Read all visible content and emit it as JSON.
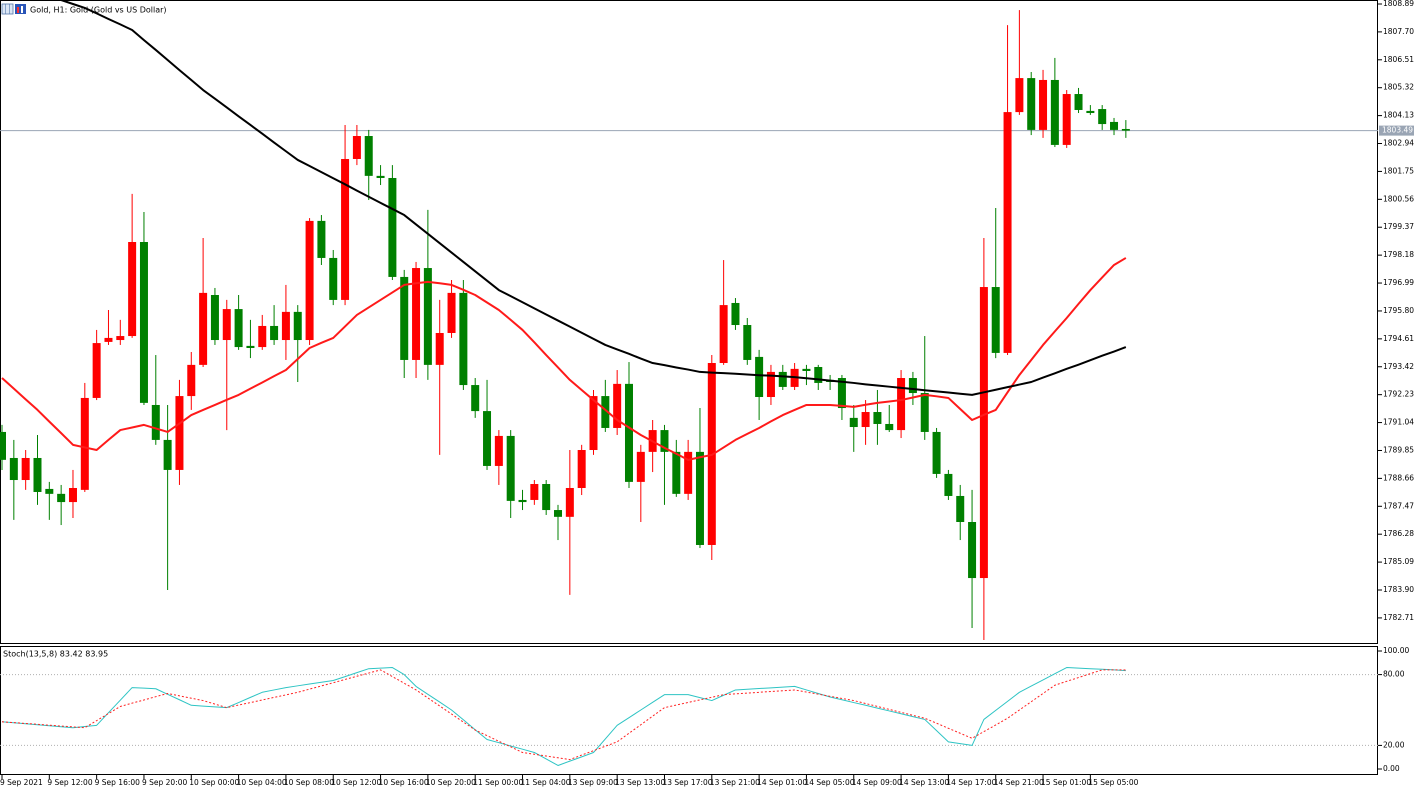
{
  "chart_data": [
    {
      "type": "candlestick",
      "title": "Gold, H1:  Gold (Gold vs US Dollar)",
      "categories": [
        "9 Sep 2021",
        null,
        null,
        null,
        "9 Sep 12:00",
        null,
        null,
        null,
        "9 Sep 16:00",
        null,
        null,
        null,
        "9 Sep 20:00",
        null,
        null,
        null,
        "10 Sep 00:00",
        null,
        null,
        null,
        "10 Sep 04:00",
        null,
        null,
        null,
        "10 Sep 08:00",
        null,
        null,
        null,
        "10 Sep 12:00",
        null,
        null,
        null,
        "10 Sep 16:00",
        null,
        null,
        null,
        "10 Sep 20:00",
        null,
        null,
        null,
        "11 Sep 00:00",
        null,
        null,
        null,
        "11 Sep 04:00",
        null,
        null,
        null,
        "13 Sep 09:00",
        null,
        null,
        null,
        "13 Sep 13:00",
        null,
        null,
        null,
        "13 Sep 17:00",
        null,
        null,
        null,
        "13 Sep 21:00",
        null,
        null,
        null,
        "14 Sep 01:00",
        null,
        null,
        null,
        "14 Sep 05:00",
        null,
        null,
        null,
        "14 Sep 09:00",
        null,
        null,
        null,
        "14 Sep 13:00",
        null,
        null,
        null,
        "14 Sep 17:00",
        null,
        null,
        null,
        "14 Sep 21:00",
        null,
        null,
        null,
        "15 Sep 01:00",
        null,
        null,
        null,
        "15 Sep 05:00",
        null,
        null,
        null
      ],
      "ohlc": [
        [
          1790.64,
          1790.94,
          1789.02,
          1789.45
        ],
        [
          1789.53,
          1790.3,
          1786.89,
          1788.59
        ],
        [
          1788.59,
          1789.87,
          1788.17,
          1789.53
        ],
        [
          1789.53,
          1790.51,
          1787.53,
          1788.08
        ],
        [
          1788.21,
          1788.51,
          1786.89,
          1788.0
        ],
        [
          1788.0,
          1788.38,
          1786.67,
          1787.65
        ],
        [
          1787.65,
          1789.02,
          1786.97,
          1788.25
        ],
        [
          1788.17,
          1792.73,
          1788.08,
          1792.09
        ],
        [
          1792.09,
          1794.99,
          1792.0,
          1794.43
        ],
        [
          1794.48,
          1795.84,
          1794.35,
          1794.65
        ],
        [
          1794.56,
          1795.42,
          1794.35,
          1794.73
        ],
        [
          1794.73,
          1800.79,
          1794.65,
          1798.74
        ],
        [
          1798.74,
          1800.02,
          1791.79,
          1791.88
        ],
        [
          1791.79,
          1793.92,
          1790.09,
          1790.3
        ],
        [
          1790.3,
          1791.79,
          1783.9,
          1789.02
        ],
        [
          1789.02,
          1792.86,
          1788.38,
          1792.17
        ],
        [
          1792.17,
          1794.05,
          1791.58,
          1793.5
        ],
        [
          1793.5,
          1798.91,
          1793.41,
          1796.57
        ],
        [
          1796.48,
          1796.78,
          1794.35,
          1794.56
        ],
        [
          1794.56,
          1796.27,
          1790.72,
          1795.88
        ],
        [
          1795.88,
          1796.48,
          1794.14,
          1794.26
        ],
        [
          1794.31,
          1795.42,
          1793.79,
          1794.22
        ],
        [
          1794.26,
          1795.63,
          1794.14,
          1795.16
        ],
        [
          1795.16,
          1796.05,
          1794.35,
          1794.56
        ],
        [
          1794.56,
          1796.91,
          1793.71,
          1795.76
        ],
        [
          1795.76,
          1796.05,
          1792.77,
          1794.56
        ],
        [
          1794.56,
          1799.76,
          1794.35,
          1799.64
        ],
        [
          1799.64,
          1799.89,
          1797.76,
          1798.06
        ],
        [
          1798.06,
          1798.4,
          1796.05,
          1796.27
        ],
        [
          1796.27,
          1803.73,
          1796.05,
          1802.28
        ],
        [
          1802.28,
          1803.73,
          1802.02,
          1803.26
        ],
        [
          1803.26,
          1803.52,
          1800.53,
          1801.56
        ],
        [
          1801.56,
          1802.02,
          1801.17,
          1801.47
        ],
        [
          1801.47,
          1802.02,
          1797.12,
          1797.25
        ],
        [
          1797.25,
          1797.55,
          1792.94,
          1793.71
        ],
        [
          1793.71,
          1797.89,
          1792.94,
          1797.63
        ],
        [
          1797.63,
          1800.11,
          1792.86,
          1793.5
        ],
        [
          1793.5,
          1796.27,
          1789.66,
          1794.86
        ],
        [
          1794.86,
          1797.12,
          1794.65,
          1796.57
        ],
        [
          1796.57,
          1797.12,
          1792.43,
          1792.64
        ],
        [
          1792.64,
          1792.94,
          1791.24,
          1791.53
        ],
        [
          1791.53,
          1792.86,
          1789.02,
          1789.19
        ],
        [
          1789.19,
          1790.72,
          1788.38,
          1790.47
        ],
        [
          1790.47,
          1790.72,
          1786.97,
          1787.7
        ],
        [
          1787.74,
          1788.17,
          1787.31,
          1787.65
        ],
        [
          1787.74,
          1788.59,
          1787.53,
          1788.42
        ],
        [
          1788.42,
          1788.59,
          1787.1,
          1787.31
        ],
        [
          1787.31,
          1787.53,
          1786.03,
          1787.02
        ],
        [
          1787.02,
          1789.87,
          1783.69,
          1788.25
        ],
        [
          1788.25,
          1790.09,
          1787.95,
          1789.87
        ],
        [
          1789.87,
          1792.43,
          1789.66,
          1792.17
        ],
        [
          1792.17,
          1792.86,
          1790.64,
          1790.81
        ],
        [
          1790.81,
          1793.28,
          1790.51,
          1792.69
        ],
        [
          1792.69,
          1793.62,
          1788.25,
          1788.51
        ],
        [
          1788.51,
          1790.09,
          1786.8,
          1789.79
        ],
        [
          1789.79,
          1791.15,
          1788.93,
          1790.72
        ],
        [
          1790.72,
          1790.94,
          1787.53,
          1789.79
        ],
        [
          1789.79,
          1790.3,
          1787.87,
          1788.0
        ],
        [
          1788.0,
          1790.3,
          1787.74,
          1789.79
        ],
        [
          1789.79,
          1791.66,
          1785.69,
          1785.82
        ],
        [
          1785.82,
          1793.92,
          1785.18,
          1793.58
        ],
        [
          1793.58,
          1797.97,
          1793.5,
          1796.05
        ],
        [
          1796.14,
          1796.35,
          1794.99,
          1795.2
        ],
        [
          1795.2,
          1795.5,
          1793.5,
          1793.71
        ],
        [
          1793.84,
          1794.14,
          1791.15,
          1792.13
        ],
        [
          1792.13,
          1793.5,
          1791.79,
          1793.2
        ],
        [
          1793.2,
          1793.5,
          1792.43,
          1792.56
        ],
        [
          1792.56,
          1793.58,
          1792.43,
          1793.33
        ],
        [
          1793.33,
          1793.5,
          1792.64,
          1793.24
        ],
        [
          1793.41,
          1793.5,
          1792.43,
          1792.73
        ],
        [
          1792.86,
          1793.07,
          1792.43,
          1792.77
        ],
        [
          1792.94,
          1793.07,
          1791.15,
          1791.66
        ],
        [
          1791.24,
          1791.79,
          1789.79,
          1790.85
        ],
        [
          1790.85,
          1792.0,
          1790.09,
          1791.49
        ],
        [
          1791.49,
          1792.43,
          1790.09,
          1790.98
        ],
        [
          1790.98,
          1791.79,
          1790.64,
          1790.72
        ],
        [
          1790.72,
          1793.28,
          1790.38,
          1792.94
        ],
        [
          1792.94,
          1793.2,
          1791.79,
          1792.3
        ],
        [
          1792.3,
          1794.73,
          1790.3,
          1790.64
        ],
        [
          1790.64,
          1790.81,
          1788.68,
          1788.85
        ],
        [
          1788.85,
          1789.02,
          1787.74,
          1787.91
        ],
        [
          1787.91,
          1788.38,
          1786.03,
          1786.8
        ],
        [
          1786.8,
          1788.17,
          1782.28,
          1784.41
        ],
        [
          1784.41,
          1798.91,
          1781.77,
          1796.82
        ],
        [
          1796.82,
          1800.19,
          1793.79,
          1794.01
        ],
        [
          1794.01,
          1807.99,
          1793.92,
          1804.28
        ],
        [
          1804.28,
          1808.63,
          1804.16,
          1805.73
        ],
        [
          1805.73,
          1805.99,
          1803.3,
          1803.52
        ],
        [
          1803.52,
          1806.08,
          1803.18,
          1805.65
        ],
        [
          1805.65,
          1806.59,
          1802.79,
          1802.88
        ],
        [
          1802.88,
          1805.22,
          1802.75,
          1805.05
        ],
        [
          1805.05,
          1805.31,
          1804.24,
          1804.37
        ],
        [
          1804.33,
          1804.58,
          1804.16,
          1804.24
        ],
        [
          1804.41,
          1804.58,
          1803.52,
          1803.77
        ],
        [
          1803.86,
          1804.03,
          1803.3,
          1803.52
        ],
        [
          1803.56,
          1803.94,
          1803.18,
          1803.49
        ]
      ],
      "up_color": "#ff0000",
      "down_color": "#008000",
      "series": [
        {
          "color": "#ff1a1a",
          "values": [
            1792.94,
            1792.49,
            1792.03,
            1791.58,
            1791.08,
            1790.59,
            1790.09,
            1789.98,
            1789.87,
            1790.3,
            1790.72,
            1790.83,
            1790.94,
            1790.79,
            1790.64,
            1791.0,
            1791.36,
            1791.58,
            1791.79,
            1792.01,
            1792.22,
            1792.49,
            1792.75,
            1793.02,
            1793.28,
            1793.75,
            1794.22,
            1794.44,
            1794.65,
            1795.14,
            1795.63,
            1795.95,
            1796.27,
            1796.59,
            1796.91,
            1796.98,
            1797.04,
            1796.98,
            1796.91,
            1796.7,
            1796.48,
            1796.16,
            1795.84,
            1795.42,
            1794.99,
            1794.46,
            1793.92,
            1793.39,
            1792.86,
            1792.43,
            1792.0,
            1791.58,
            1791.15,
            1790.83,
            1790.51,
            1790.24,
            1789.96,
            1789.71,
            1789.45,
            1789.56,
            1789.66,
            1789.98,
            1790.3,
            1790.56,
            1790.81,
            1791.09,
            1791.36,
            1791.58,
            1791.79,
            1791.79,
            1791.79,
            1791.75,
            1791.71,
            1791.8,
            1791.88,
            1791.94,
            1792.0,
            1792.11,
            1792.22,
            1792.16,
            1792.09,
            1791.62,
            1791.15,
            1791.37,
            1791.58,
            1792.33,
            1793.07,
            1793.71,
            1794.35,
            1794.93,
            1795.5,
            1796.1,
            1796.69,
            1797.23,
            1797.76,
            1798.06
          ]
        },
        {
          "color": "#000000",
          "values": [
            1809.91,
            1809.74,
            1809.57,
            1809.4,
            1809.23,
            1809.06,
            1808.89,
            1808.72,
            1808.49,
            1808.25,
            1808.02,
            1807.78,
            1807.35,
            1806.93,
            1806.5,
            1806.07,
            1805.65,
            1805.22,
            1804.85,
            1804.48,
            1804.1,
            1803.73,
            1803.36,
            1802.98,
            1802.61,
            1802.24,
            1801.98,
            1801.72,
            1801.46,
            1801.2,
            1800.93,
            1800.67,
            1800.41,
            1800.15,
            1799.89,
            1799.49,
            1799.09,
            1798.69,
            1798.29,
            1797.89,
            1797.49,
            1797.09,
            1796.69,
            1796.43,
            1796.17,
            1795.91,
            1795.65,
            1795.39,
            1795.13,
            1794.87,
            1794.61,
            1794.35,
            1794.16,
            1793.97,
            1793.77,
            1793.58,
            1793.49,
            1793.39,
            1793.3,
            1793.2,
            1793.17,
            1793.15,
            1793.12,
            1793.09,
            1793.06,
            1793.04,
            1793.01,
            1792.98,
            1792.93,
            1792.88,
            1792.83,
            1792.78,
            1792.73,
            1792.67,
            1792.62,
            1792.57,
            1792.52,
            1792.47,
            1792.42,
            1792.37,
            1792.32,
            1792.27,
            1792.22,
            1792.33,
            1792.44,
            1792.55,
            1792.66,
            1792.77,
            1792.96,
            1793.14,
            1793.33,
            1793.51,
            1793.7,
            1793.89,
            1794.07,
            1794.26
          ]
        }
      ],
      "ylim": [
        1781.64,
        1809.06
      ],
      "yticks": [
        1808.89,
        {
          "value": 1807.7,
          "label": "1807.70"
        },
        1806.51,
        1805.32,
        1804.13,
        1802.94,
        1801.75,
        1800.56,
        1799.37,
        1798.18,
        1796.99,
        {
          "value": 1795.8,
          "label": "1795.80"
        },
        1794.61,
        1793.42,
        1792.23,
        1791.04,
        1789.85,
        1788.66,
        1787.47,
        1786.28,
        1785.09,
        {
          "value": 1783.9,
          "label": "1783.90"
        },
        1782.71
      ],
      "last_price": 1803.49,
      "last_price_color": "#9aa5b4"
    },
    {
      "type": "line",
      "title": "Stoch(13,5,8) 83.42 83.95",
      "series": [
        {
          "color": "#2ec4c4",
          "values": [
            40,
            39.2,
            38.3,
            37.5,
            36.7,
            35.8,
            35,
            36,
            37,
            47.7,
            58.3,
            69,
            68.5,
            68,
            63.3,
            58.7,
            54,
            53.3,
            52.7,
            52,
            56.3,
            60.7,
            65,
            67,
            69,
            70.5,
            72,
            73.5,
            75,
            78.3,
            81.7,
            85,
            85.5,
            86,
            80,
            70,
            63.3,
            56.7,
            50,
            41.7,
            33.3,
            25,
            22.3,
            19.5,
            16.8,
            14,
            8.5,
            3,
            6.7,
            10.3,
            14,
            25.5,
            37,
            43.5,
            50,
            56.5,
            63,
            63,
            63,
            60.5,
            58,
            62.5,
            67,
            67.6,
            68.2,
            68.8,
            69.4,
            70,
            67,
            64,
            61,
            58.7,
            56.3,
            54,
            51.6,
            49.2,
            46.8,
            44.4,
            42,
            32.5,
            23,
            21.5,
            20,
            42,
            49.7,
            57.3,
            65,
            70.3,
            75.5,
            80.8,
            86,
            85.5,
            85,
            84.5,
            84,
            83.42
          ]
        },
        {
          "color": "#ff2020",
          "dashed": true,
          "values": [
            40,
            39.3,
            38.6,
            37.9,
            37.1,
            36.4,
            35.7,
            35,
            41,
            47,
            53,
            55.8,
            58.5,
            61.3,
            64,
            62,
            60,
            58,
            55,
            52,
            54.2,
            56.3,
            58.5,
            60.7,
            62.8,
            65,
            67.7,
            70.4,
            73.1,
            75.9,
            78.6,
            81.3,
            84,
            78.3,
            72.7,
            67,
            60.2,
            53.4,
            46.6,
            39.8,
            33,
            28.3,
            23.5,
            18.8,
            14,
            12.5,
            11,
            9.5,
            8,
            11.8,
            15.5,
            19.3,
            23,
            30.3,
            37.5,
            44.8,
            52,
            54.2,
            56.4,
            58.6,
            60.8,
            63,
            63.7,
            64.3,
            65,
            65.7,
            66.3,
            67,
            65.2,
            63.4,
            61.6,
            59.8,
            58,
            55.5,
            53,
            50.5,
            48,
            45.5,
            43,
            38.8,
            34.5,
            30.3,
            26,
            31.7,
            37.3,
            43,
            50,
            57,
            64,
            71,
            74.3,
            77.5,
            80.8,
            84,
            84,
            83.95
          ]
        }
      ],
      "levels": [
        80,
        20
      ],
      "ylim": [
        -5.08,
        104.24
      ],
      "yticks": [
        {
          "value": 100,
          "label": "100.00"
        },
        {
          "value": 80,
          "label": "80.00"
        },
        {
          "value": 20,
          "label": "20.00"
        },
        {
          "value": 0,
          "label": "0.00"
        }
      ]
    }
  ]
}
